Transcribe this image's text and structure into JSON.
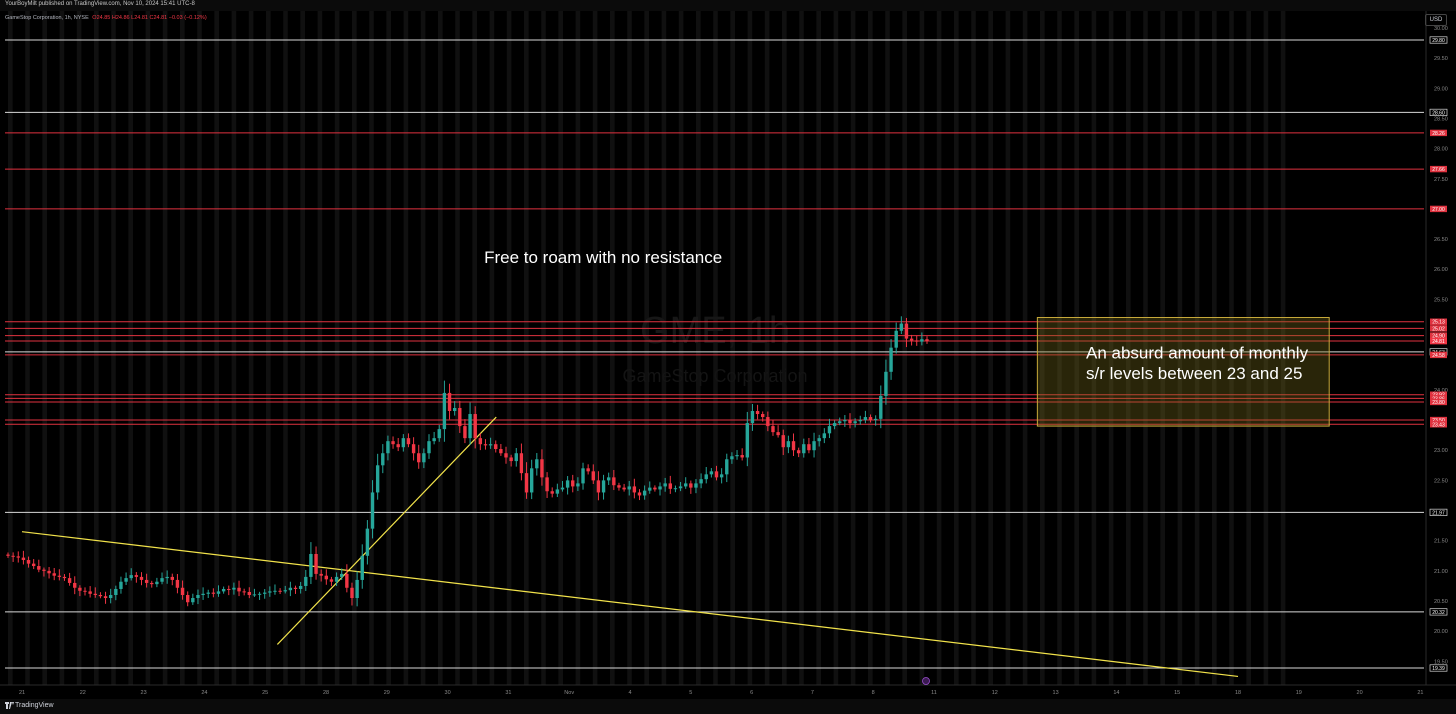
{
  "header": {
    "published": "YourBoyMilt published on TradingView.com, Nov 10, 2024 15:41 UTC-8"
  },
  "legend": {
    "symbol": "GameStop Corporation, 1h, NYSE",
    "ohlc": "O24.85 H24.86 L24.81 C24.81 −0.03 (−0.12%)"
  },
  "currency_button": "USD",
  "footer": {
    "brand": "TradingView"
  },
  "colors": {
    "background": "#000000",
    "session_shade": "#101010",
    "up": "#26a69a",
    "down": "#f23645",
    "level_red": "#e0323f",
    "level_white": "#d8d8d8",
    "trendline": "#f2e34b",
    "zone_fill": "rgba(117,105,26,0.35)",
    "zone_border": "#c7a93a"
  },
  "chart_data": {
    "type": "candlestick",
    "symbol": "GME",
    "interval": "1h",
    "watermark": {
      "symbol_line": "GME, 1h",
      "name_line": "GameStop Corporation"
    },
    "ylim": [
      19.2,
      30.2
    ],
    "y_axis_ticks": [
      30.0,
      29.5,
      29.0,
      28.5,
      28.0,
      27.5,
      26.5,
      26.0,
      25.5,
      24.0,
      23.0,
      22.5,
      21.5,
      21.0,
      20.5,
      20.0,
      19.5
    ],
    "x_axis_ticks": [
      {
        "label": "21",
        "day": 0
      },
      {
        "label": "22",
        "day": 1
      },
      {
        "label": "23",
        "day": 2
      },
      {
        "label": "24",
        "day": 3
      },
      {
        "label": "25",
        "day": 4
      },
      {
        "label": "28",
        "day": 5
      },
      {
        "label": "29",
        "day": 6
      },
      {
        "label": "30",
        "day": 7
      },
      {
        "label": "31",
        "day": 8
      },
      {
        "label": "Nov",
        "day": 9
      },
      {
        "label": "4",
        "day": 10
      },
      {
        "label": "5",
        "day": 11
      },
      {
        "label": "6",
        "day": 12
      },
      {
        "label": "7",
        "day": 13
      },
      {
        "label": "8",
        "day": 14
      },
      {
        "label": "11",
        "day": 15
      },
      {
        "label": "12",
        "day": 16
      },
      {
        "label": "13",
        "day": 17
      },
      {
        "label": "14",
        "day": 18
      },
      {
        "label": "15",
        "day": 19
      },
      {
        "label": "18",
        "day": 20
      },
      {
        "label": "19",
        "day": 21
      },
      {
        "label": "20",
        "day": 22
      },
      {
        "label": "21",
        "day": 23
      }
    ],
    "horizontal_levels": [
      {
        "price": 29.8,
        "label": "29.80",
        "color": "white"
      },
      {
        "price": 28.6,
        "label": "28.60",
        "color": "white"
      },
      {
        "price": 28.26,
        "label": "28.26",
        "color": "red"
      },
      {
        "price": 27.66,
        "label": "27.66",
        "color": "red"
      },
      {
        "price": 27.0,
        "label": "27.00",
        "color": "red"
      },
      {
        "price": 25.13,
        "label": "25.13",
        "color": "red"
      },
      {
        "price": 25.02,
        "label": "25.02",
        "color": "red"
      },
      {
        "price": 24.9,
        "label": "24.90",
        "color": "red"
      },
      {
        "price": 24.81,
        "label": "24.81",
        "color": "red"
      },
      {
        "price": 24.63,
        "label": "24.63",
        "color": "white"
      },
      {
        "price": 24.58,
        "label": "24.58",
        "color": "red"
      },
      {
        "price": 23.92,
        "label": "23.92",
        "color": "red"
      },
      {
        "price": 23.86,
        "label": "23.86",
        "color": "red"
      },
      {
        "price": 23.8,
        "label": "23.80",
        "color": "red"
      },
      {
        "price": 23.5,
        "label": "23.50",
        "color": "red"
      },
      {
        "price": 23.43,
        "label": "23.43",
        "color": "red"
      },
      {
        "price": 21.97,
        "label": "21.97",
        "color": "white"
      },
      {
        "price": 20.32,
        "label": "20.32",
        "color": "white"
      },
      {
        "price": 19.39,
        "label": "19.39",
        "color": "white"
      }
    ],
    "last_price": {
      "price": 24.81,
      "label": "24.81"
    },
    "trendlines": [
      {
        "from": {
          "day": 0.0,
          "price": 21.65
        },
        "to": {
          "day": 20.0,
          "price": 19.25
        }
      },
      {
        "from": {
          "day": 4.2,
          "price": 19.78
        },
        "to": {
          "day": 7.8,
          "price": 23.55
        }
      }
    ],
    "zone": {
      "from_day": 16.7,
      "to_day": 21.5,
      "top": 25.2,
      "bottom": 23.4
    },
    "annotations": [
      {
        "text": "Free to roam with no resistance",
        "day": 7.6,
        "price": 26.1
      },
      {
        "text": "An absurd amount of monthly",
        "day": 17.5,
        "price": 24.52
      },
      {
        "text": "s/r levels between 23 and 25",
        "day": 17.5,
        "price": 24.18
      }
    ],
    "candles_close": [
      21.25,
      21.24,
      21.22,
      21.18,
      21.12,
      21.08,
      21.02,
      21.0,
      20.96,
      20.92,
      20.9,
      20.88,
      20.8,
      20.72,
      20.67,
      20.66,
      20.62,
      20.6,
      20.58,
      20.55,
      20.6,
      20.7,
      20.82,
      20.88,
      20.93,
      20.9,
      20.85,
      20.8,
      20.78,
      20.82,
      20.88,
      20.9,
      20.85,
      20.72,
      20.6,
      20.48,
      20.55,
      20.6,
      20.62,
      20.64,
      20.62,
      20.66,
      20.7,
      20.69,
      20.72,
      20.66,
      20.65,
      20.6,
      20.61,
      20.62,
      20.64,
      20.66,
      20.67,
      20.66,
      20.68,
      20.72,
      20.7,
      20.75,
      20.9,
      21.28,
      20.95,
      20.92,
      20.86,
      20.82,
      20.9,
      20.95,
      20.72,
      20.55,
      20.85,
      21.25,
      21.7,
      22.3,
      22.75,
      22.95,
      23.15,
      23.1,
      23.05,
      23.2,
      23.1,
      22.95,
      22.8,
      22.95,
      23.15,
      23.2,
      23.35,
      23.95,
      23.65,
      23.7,
      23.4,
      23.2,
      23.6,
      23.2,
      23.1,
      23.08,
      23.1,
      23.02,
      22.95,
      22.88,
      22.82,
      22.95,
      22.62,
      22.3,
      22.7,
      22.85,
      22.55,
      22.32,
      22.28,
      22.35,
      22.38,
      22.5,
      22.4,
      22.45,
      22.7,
      22.65,
      22.5,
      22.3,
      22.5,
      22.55,
      22.42,
      22.38,
      22.35,
      22.4,
      22.3,
      22.25,
      22.33,
      22.38,
      22.35,
      22.4,
      22.45,
      22.36,
      22.37,
      22.4,
      22.45,
      22.38,
      22.45,
      22.52,
      22.6,
      22.65,
      22.55,
      22.6,
      22.85,
      22.9,
      22.92,
      22.88,
      23.45,
      23.65,
      23.6,
      23.55,
      23.4,
      23.3,
      23.25,
      23.05,
      23.15,
      23.0,
      22.95,
      23.1,
      23.0,
      23.15,
      23.2,
      23.28,
      23.4,
      23.45,
      23.48,
      23.5,
      23.45,
      23.48,
      23.5,
      23.55,
      23.5,
      23.52,
      23.9,
      24.3,
      24.7,
      24.98,
      25.1,
      24.85,
      24.82,
      24.8,
      24.84,
      24.81
    ]
  }
}
